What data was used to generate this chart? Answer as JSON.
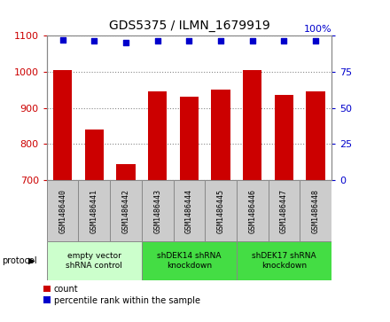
{
  "title": "GDS5375 / ILMN_1679919",
  "samples": [
    "GSM1486440",
    "GSM1486441",
    "GSM1486442",
    "GSM1486443",
    "GSM1486444",
    "GSM1486445",
    "GSM1486446",
    "GSM1486447",
    "GSM1486448"
  ],
  "counts": [
    1005,
    840,
    745,
    945,
    930,
    950,
    1005,
    935,
    945
  ],
  "percentile_ranks": [
    97,
    96,
    95,
    96,
    96,
    96,
    96,
    96,
    96
  ],
  "groups": [
    {
      "label": "empty vector\nshRNA control",
      "start": 0,
      "end": 3,
      "color": "#ccffcc"
    },
    {
      "label": "shDEK14 shRNA\nknockdown",
      "start": 3,
      "end": 6,
      "color": "#44dd44"
    },
    {
      "label": "shDEK17 shRNA\nknockdown",
      "start": 6,
      "end": 9,
      "color": "#44dd44"
    }
  ],
  "ylim_left": [
    700,
    1100
  ],
  "ylim_right": [
    0,
    100
  ],
  "yticks_left": [
    700,
    800,
    900,
    1000,
    1100
  ],
  "yticks_right": [
    0,
    25,
    50,
    75,
    100
  ],
  "bar_color": "#cc0000",
  "dot_color": "#0000cc",
  "bar_width": 0.6,
  "legend_count_label": "count",
  "legend_percentile_label": "percentile rank within the sample",
  "protocol_label": "protocol",
  "sample_box_color": "#cccccc",
  "plot_bg": "#ffffff"
}
